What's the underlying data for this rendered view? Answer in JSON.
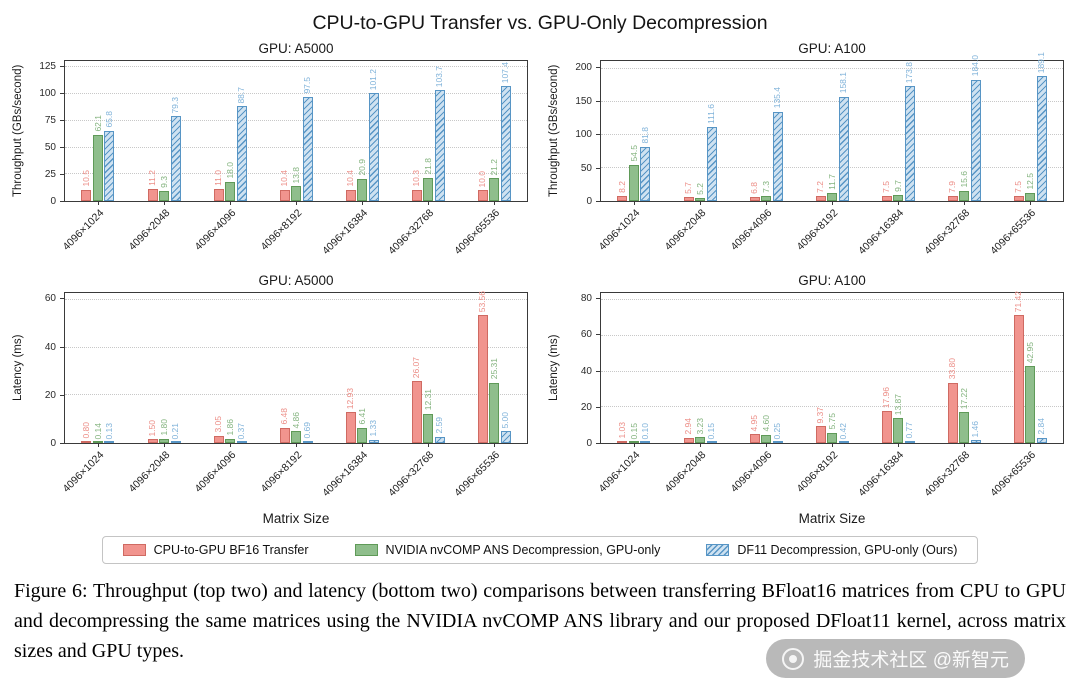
{
  "title": "CPU-to-GPU Transfer vs. GPU-Only Decompression",
  "xlabel": "Matrix Size",
  "caption": "Figure 6: Throughput (top two) and latency (bottom two) comparisons between transferring BFloat16 matrices from CPU to GPU and decompressing the same matrices using the NVIDIA nvCOMP ANS library and our proposed DFloat11 kernel, across matrix sizes and GPU types.",
  "watermark": {
    "text": "掘金技术社区 @新智元"
  },
  "legend": {
    "items": [
      {
        "key": "transfer",
        "label": "CPU-to-GPU BF16 Transfer",
        "fill": "#f1948e",
        "edge": "#cf6a62",
        "label_color": "#ec8d86",
        "hatch": false
      },
      {
        "key": "nvcomp",
        "label": "NVIDIA nvCOMP ANS Decompression, GPU-only",
        "fill": "#8fbe8c",
        "edge": "#5f9a58",
        "label_color": "#83b37e",
        "hatch": false
      },
      {
        "key": "df11",
        "label": "DF11 Decompression, GPU-only (Ours)",
        "fill": "#cfe2f1",
        "edge": "#5795c5",
        "label_color": "#7fb2d9",
        "hatch": true
      }
    ]
  },
  "chart_data": [
    {
      "type": "bar",
      "title": "GPU: A5000",
      "ylabel": "Throughput (GBs/second)",
      "categories": [
        "4096×1024",
        "4096×2048",
        "4096×4096",
        "4096×8192",
        "4096×16384",
        "4096×32768",
        "4096×65536"
      ],
      "yticks": [
        0,
        25,
        50,
        75,
        100,
        125
      ],
      "ylim": [
        0,
        131
      ],
      "decimals": 1,
      "grid": "dotted-horizontal",
      "series": [
        {
          "name": "CPU-to-GPU BF16 Transfer",
          "values": [
            10.5,
            11.2,
            11.0,
            10.4,
            10.4,
            10.3,
            10.0
          ]
        },
        {
          "name": "NVIDIA nvCOMP ANS Decompression, GPU-only",
          "values": [
            62.1,
            9.3,
            18.0,
            13.8,
            20.9,
            21.8,
            21.2
          ]
        },
        {
          "name": "DF11 Decompression, GPU-only (Ours)",
          "values": [
            65.8,
            79.3,
            88.7,
            97.5,
            101.2,
            103.7,
            107.4
          ]
        }
      ]
    },
    {
      "type": "bar",
      "title": "GPU: A100",
      "ylabel": "Throughput (GBs/second)",
      "categories": [
        "4096×1024",
        "4096×2048",
        "4096×4096",
        "4096×8192",
        "4096×16384",
        "4096×32768",
        "4096×65536"
      ],
      "yticks": [
        0,
        50,
        100,
        150,
        200
      ],
      "ylim": [
        0,
        212
      ],
      "decimals": 1,
      "grid": "dotted-horizontal",
      "series": [
        {
          "name": "CPU-to-GPU BF16 Transfer",
          "values": [
            8.2,
            5.7,
            6.8,
            7.2,
            7.5,
            7.9,
            7.5
          ]
        },
        {
          "name": "NVIDIA nvCOMP ANS Decompression, GPU-only",
          "values": [
            54.5,
            5.2,
            7.3,
            11.7,
            9.7,
            15.6,
            12.5
          ]
        },
        {
          "name": "DF11 Decompression, GPU-only (Ours)",
          "values": [
            81.8,
            111.6,
            135.4,
            158.1,
            173.8,
            184.0,
            189.1
          ]
        }
      ]
    },
    {
      "type": "bar",
      "title": "GPU: A5000",
      "ylabel": "Latency (ms)",
      "categories": [
        "4096×1024",
        "4096×2048",
        "4096×4096",
        "4096×8192",
        "4096×16384",
        "4096×32768",
        "4096×65536"
      ],
      "yticks": [
        0,
        20,
        40,
        60
      ],
      "ylim": [
        0,
        63
      ],
      "decimals": 2,
      "grid": "dotted-horizontal",
      "series": [
        {
          "name": "CPU-to-GPU BF16 Transfer",
          "values": [
            0.8,
            1.5,
            3.05,
            6.48,
            12.93,
            26.07,
            53.56
          ]
        },
        {
          "name": "NVIDIA nvCOMP ANS Decompression, GPU-only",
          "values": [
            0.14,
            1.8,
            1.86,
            4.86,
            6.41,
            12.31,
            25.31
          ]
        },
        {
          "name": "DF11 Decompression, GPU-only (Ours)",
          "values": [
            0.13,
            0.21,
            0.37,
            0.69,
            1.33,
            2.59,
            5.0
          ]
        }
      ]
    },
    {
      "type": "bar",
      "title": "GPU: A100",
      "ylabel": "Latency (ms)",
      "categories": [
        "4096×1024",
        "4096×2048",
        "4096×4096",
        "4096×8192",
        "4096×16384",
        "4096×32768",
        "4096×65536"
      ],
      "yticks": [
        0,
        20,
        40,
        60,
        80
      ],
      "ylim": [
        0,
        84
      ],
      "decimals": 2,
      "grid": "dotted-horizontal",
      "series": [
        {
          "name": "CPU-to-GPU BF16 Transfer",
          "values": [
            1.03,
            2.94,
            4.95,
            9.37,
            17.96,
            33.8,
            71.42
          ]
        },
        {
          "name": "NVIDIA nvCOMP ANS Decompression, GPU-only",
          "values": [
            0.15,
            3.23,
            4.6,
            5.75,
            13.87,
            17.22,
            42.95
          ]
        },
        {
          "name": "DF11 Decompression, GPU-only (Ours)",
          "values": [
            0.1,
            0.15,
            0.25,
            0.42,
            0.77,
            1.46,
            2.84
          ]
        }
      ]
    }
  ]
}
